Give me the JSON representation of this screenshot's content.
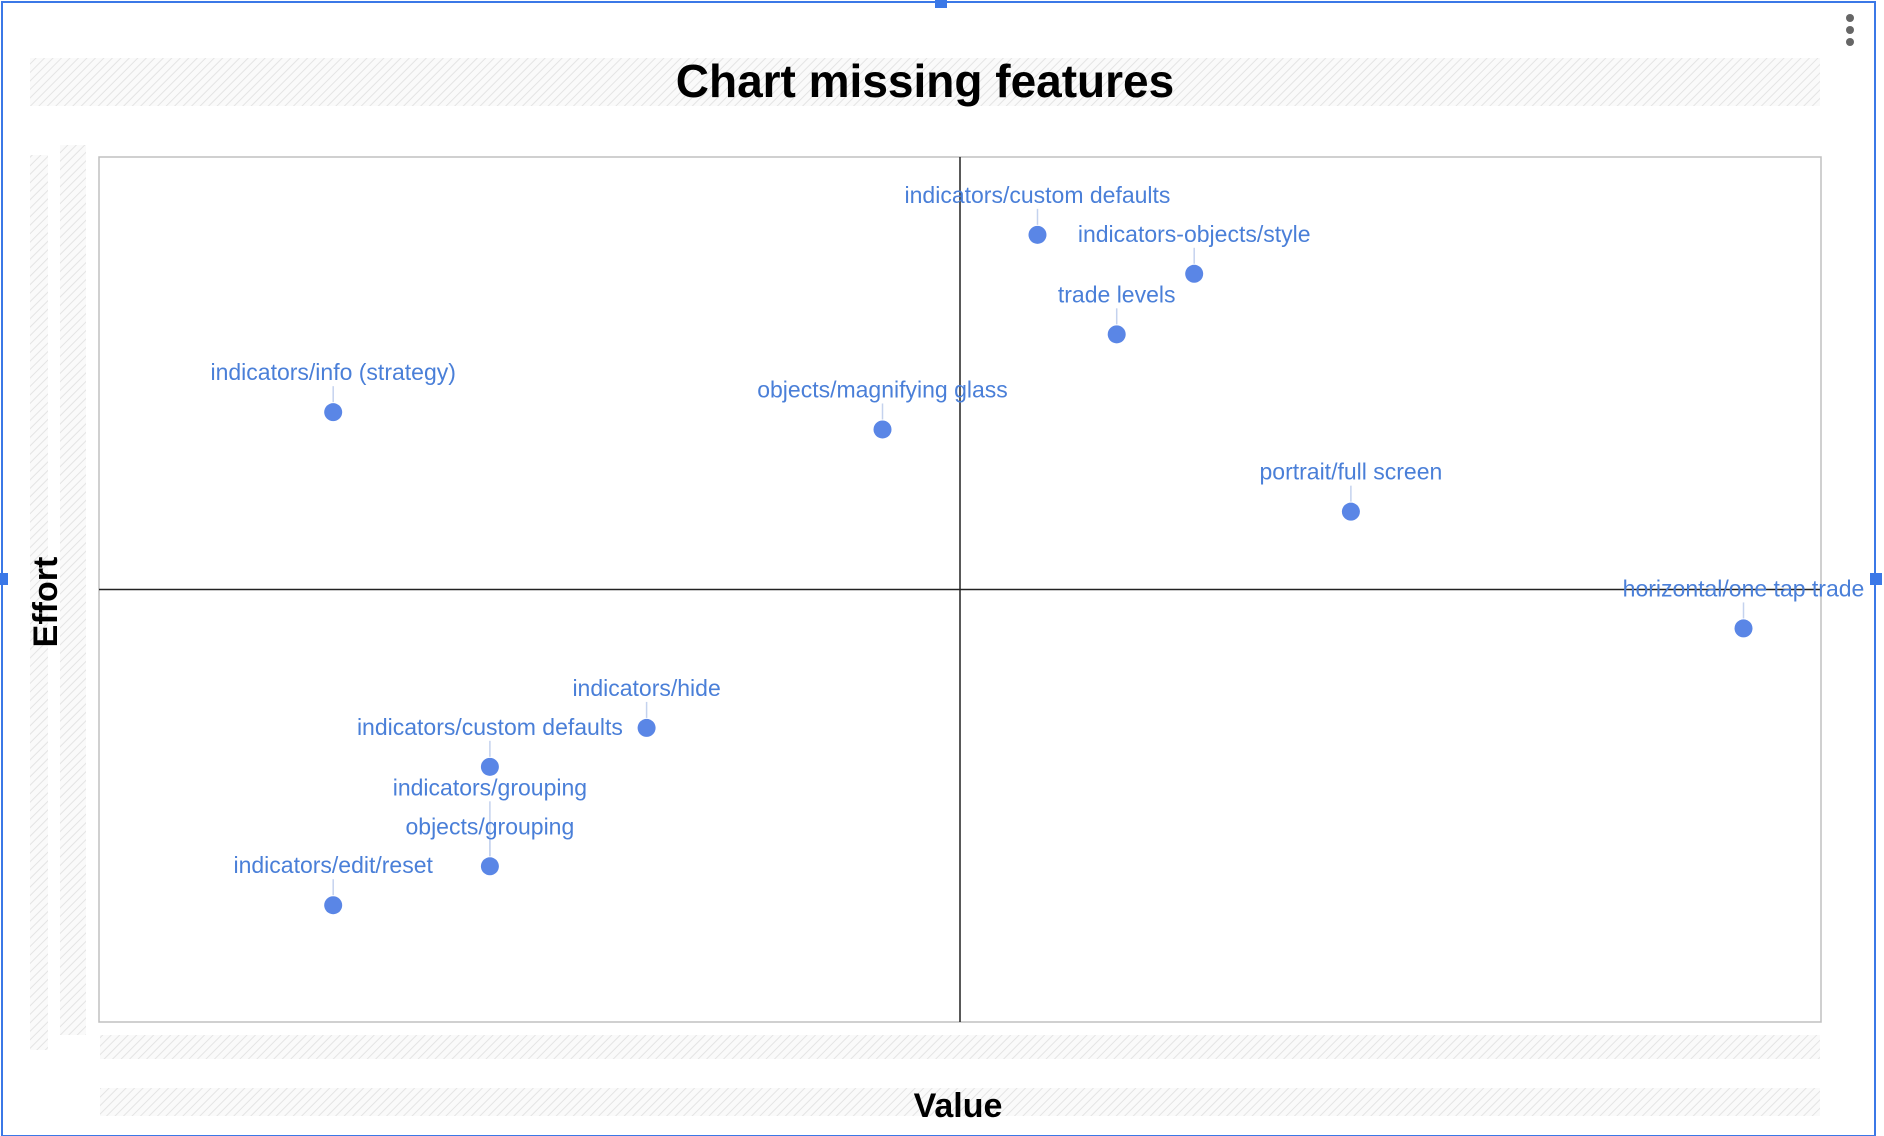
{
  "chart_data": {
    "type": "scatter",
    "title": "Chart missing features",
    "xlabel": "Value",
    "ylabel": "Effort",
    "xlim": [
      0,
      10
    ],
    "ylim": [
      0,
      10
    ],
    "quadrant_lines": {
      "x": 5,
      "y": 5
    },
    "grid": false,
    "legend": "none",
    "color": "#5a86e6",
    "label_color": "#4a7fd8",
    "points": [
      {
        "label": "indicators/custom defaults",
        "x": 5.45,
        "y": 9.1
      },
      {
        "label": "indicators-objects/style",
        "x": 6.36,
        "y": 8.65
      },
      {
        "label": "trade levels",
        "x": 5.91,
        "y": 7.95
      },
      {
        "label": "indicators/info (strategy)",
        "x": 1.36,
        "y": 7.05
      },
      {
        "label": "objects/magnifying glass",
        "x": 4.55,
        "y": 6.85
      },
      {
        "label": "portrait/full screen",
        "x": 7.27,
        "y": 5.9
      },
      {
        "label": "horizontal/one tap trade",
        "x": 9.55,
        "y": 4.55
      },
      {
        "label": "indicators/hide",
        "x": 3.18,
        "y": 3.4
      },
      {
        "label": "indicators/custom defaults",
        "x": 2.27,
        "y": 2.95
      },
      {
        "label": "indicators/grouping",
        "x": 2.27,
        "y": 1.8
      },
      {
        "label": "objects/grouping",
        "x": 2.27,
        "y": 1.8
      },
      {
        "label": "indicators/edit/reset",
        "x": 1.36,
        "y": 1.35
      }
    ]
  },
  "ui": {
    "menu_icon": "more-vert-icon",
    "selection_color": "#3b78e7"
  }
}
